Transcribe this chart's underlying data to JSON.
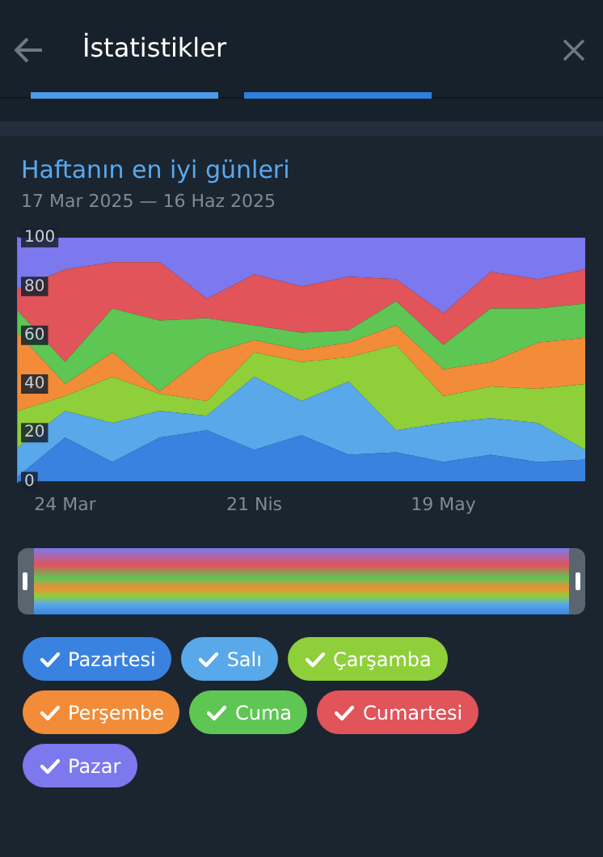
{
  "chart_data": {
    "type": "area",
    "stacked": true,
    "title": "Haftanın en iyi günleri",
    "subtitle": "17 Mar 2025 — 16 Haz 2025",
    "annotations": [
      "İstatistikler"
    ],
    "categories": [
      null,
      "24 Mar",
      null,
      null,
      null,
      "21 Nis",
      null,
      null,
      null,
      "19 May",
      null,
      null,
      null
    ],
    "ylim": [
      0,
      100
    ],
    "yticks": [
      0,
      20,
      40,
      60,
      80,
      100
    ],
    "legend": "bottom",
    "series": [
      {
        "name": "Pazartesi",
        "color": "#3a82e0",
        "values": [
          2,
          18,
          8,
          18,
          21,
          13,
          19,
          11,
          12,
          8,
          11,
          8,
          9
        ]
      },
      {
        "name": "Salı",
        "color": "#58a8ea",
        "values": [
          12,
          11,
          16,
          11,
          6,
          30,
          14,
          30,
          9,
          16,
          15,
          16,
          4
        ]
      },
      {
        "name": "Çarşamba",
        "color": "#8ecf3a",
        "values": [
          15,
          6,
          19,
          7,
          6,
          10,
          16,
          10,
          35,
          11,
          13,
          14,
          27
        ]
      },
      {
        "name": "Perşembe",
        "color": "#f28c38",
        "values": [
          32,
          5,
          10,
          1,
          19,
          5,
          5,
          6,
          8,
          11,
          10,
          19,
          19
        ]
      },
      {
        "name": "Cuma",
        "color": "#5ec653",
        "values": [
          9,
          9,
          18,
          29,
          15,
          6,
          7,
          5,
          10,
          10,
          22,
          14,
          14
        ]
      },
      {
        "name": "Cumartesi",
        "color": "#e0545a",
        "values": [
          9,
          38,
          19,
          24,
          8,
          21,
          19,
          22,
          9,
          13,
          15,
          12,
          14
        ]
      },
      {
        "name": "Pazar",
        "color": "#7c78ee",
        "values": [
          21,
          13,
          10,
          10,
          25,
          15,
          20,
          16,
          17,
          31,
          14,
          17,
          13
        ]
      }
    ]
  }
}
